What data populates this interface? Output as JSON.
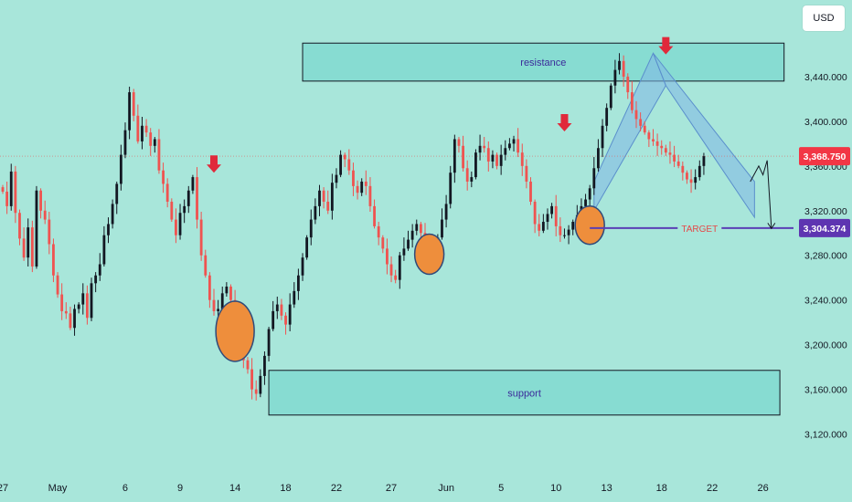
{
  "currency_button": "USD",
  "colors": {
    "background": "#a8e6da",
    "bull": "#131722",
    "bear": "#ef5350",
    "zone_fill": "#87dcd2",
    "channel_fill": "#7fb7e6",
    "marker": "#ee8e3c",
    "arrow": "#e0293b",
    "target_line": "#5a3fb5",
    "target_label": "#e54848",
    "price_badge": "#f23645",
    "target_badge": "#5e35b1"
  },
  "chart_data": {
    "type": "candlestick",
    "y_axis": {
      "min": 3100,
      "max": 3480,
      "ticks": [
        "3,440.000",
        "3,400.000",
        "3,360.000",
        "3,320.000",
        "3,280.000",
        "3,240.000",
        "3,200.000",
        "3,160.000",
        "3,120.000"
      ],
      "tick_values": [
        3440,
        3400,
        3360,
        3320,
        3280,
        3240,
        3200,
        3160,
        3120
      ]
    },
    "x_axis": {
      "ticks": [
        {
          "label": "27",
          "bar": 0
        },
        {
          "label": "May",
          "bar": 13
        },
        {
          "label": "6",
          "bar": 29
        },
        {
          "label": "9",
          "bar": 42
        },
        {
          "label": "14",
          "bar": 55
        },
        {
          "label": "18",
          "bar": 67
        },
        {
          "label": "22",
          "bar": 79
        },
        {
          "label": "27",
          "bar": 92
        },
        {
          "label": "Jun",
          "bar": 105
        },
        {
          "label": "5",
          "bar": 118
        },
        {
          "label": "10",
          "bar": 131
        },
        {
          "label": "13",
          "bar": 143
        },
        {
          "label": "18",
          "bar": 156
        },
        {
          "label": "22",
          "bar": 168
        },
        {
          "label": "26",
          "bar": 180
        }
      ]
    },
    "bars": [
      3337,
      3324,
      3355,
      3318,
      3295,
      3278,
      3305,
      3270,
      3338,
      3320,
      3312,
      3290,
      3262,
      3245,
      3230,
      3228,
      3215,
      3232,
      3236,
      3246,
      3224,
      3255,
      3262,
      3272,
      3298,
      3308,
      3326,
      3344,
      3370,
      3392,
      3426,
      3405,
      3382,
      3396,
      3390,
      3378,
      3384,
      3356,
      3344,
      3328,
      3312,
      3298,
      3318,
      3324,
      3338,
      3350,
      3312,
      3280,
      3262,
      3240,
      3230,
      3232,
      3246,
      3252,
      3240,
      3220,
      3204,
      3186,
      3178,
      3160,
      3156,
      3172,
      3190,
      3214,
      3230,
      3236,
      3226,
      3218,
      3236,
      3248,
      3262,
      3278,
      3296,
      3312,
      3324,
      3338,
      3328,
      3320,
      3345,
      3352,
      3370,
      3366,
      3356,
      3342,
      3336,
      3346,
      3342,
      3324,
      3306,
      3296,
      3286,
      3272,
      3262,
      3258,
      3280,
      3286,
      3294,
      3302,
      3308,
      3300,
      3288,
      3276,
      3286,
      3296,
      3312,
      3326,
      3354,
      3384,
      3378,
      3358,
      3346,
      3350,
      3372,
      3378,
      3376,
      3364,
      3370,
      3360,
      3370,
      3376,
      3380,
      3384,
      3372,
      3360,
      3346,
      3328,
      3308,
      3302,
      3310,
      3317,
      3324,
      3306,
      3298,
      3298,
      3303,
      3310,
      3316,
      3324,
      3330,
      3340,
      3358,
      3376,
      3396,
      3412,
      3432,
      3446,
      3454,
      3440,
      3426,
      3410,
      3402,
      3396,
      3390,
      3384,
      3382,
      3378,
      3376,
      3372,
      3370,
      3364,
      3360,
      3354,
      3348,
      3345,
      3350,
      3360,
      3368.75
    ],
    "current_price": {
      "label": "3,368.750",
      "value": 3368.75
    },
    "target": {
      "label": "TARGET",
      "value": 3304.374,
      "badge": "3,304.374",
      "start_bar": 139,
      "end_bar": 188
    },
    "zones": [
      {
        "label": "resistance",
        "from": 3436,
        "to": 3470,
        "start_bar": 71,
        "end_bar": 185
      },
      {
        "label": "support",
        "from": 3137,
        "to": 3177,
        "start_bar": 63,
        "end_bar": 184
      }
    ],
    "markers": [
      {
        "bar": 55,
        "value": 3212,
        "rx": 21,
        "ry": 33
      },
      {
        "bar": 101,
        "value": 3281,
        "rx": 16,
        "ry": 22
      },
      {
        "bar": 139,
        "value": 3307,
        "rx": 16,
        "ry": 21
      }
    ],
    "arrows": [
      {
        "bar": 50,
        "value": 3358
      },
      {
        "bar": 133,
        "value": 3395
      },
      {
        "bar": 157,
        "value": 3464
      }
    ],
    "channel": {
      "up_lower": [
        {
          "bar": 140,
          "value": 3320
        },
        {
          "bar": 157,
          "value": 3432
        }
      ],
      "up_upper": [
        {
          "bar": 140,
          "value": 3346
        },
        {
          "bar": 154,
          "value": 3461
        }
      ],
      "down_upper": [
        {
          "bar": 154,
          "value": 3461
        },
        {
          "bar": 178,
          "value": 3346
        }
      ],
      "down_lower": [
        {
          "bar": 157,
          "value": 3432
        },
        {
          "bar": 178,
          "value": 3314
        }
      ]
    },
    "projection": [
      {
        "bar": 177,
        "value": 3346
      },
      {
        "bar": 179,
        "value": 3360
      },
      {
        "bar": 180,
        "value": 3352
      },
      {
        "bar": 181,
        "value": 3365
      },
      {
        "bar": 182,
        "value": 3304
      }
    ]
  }
}
